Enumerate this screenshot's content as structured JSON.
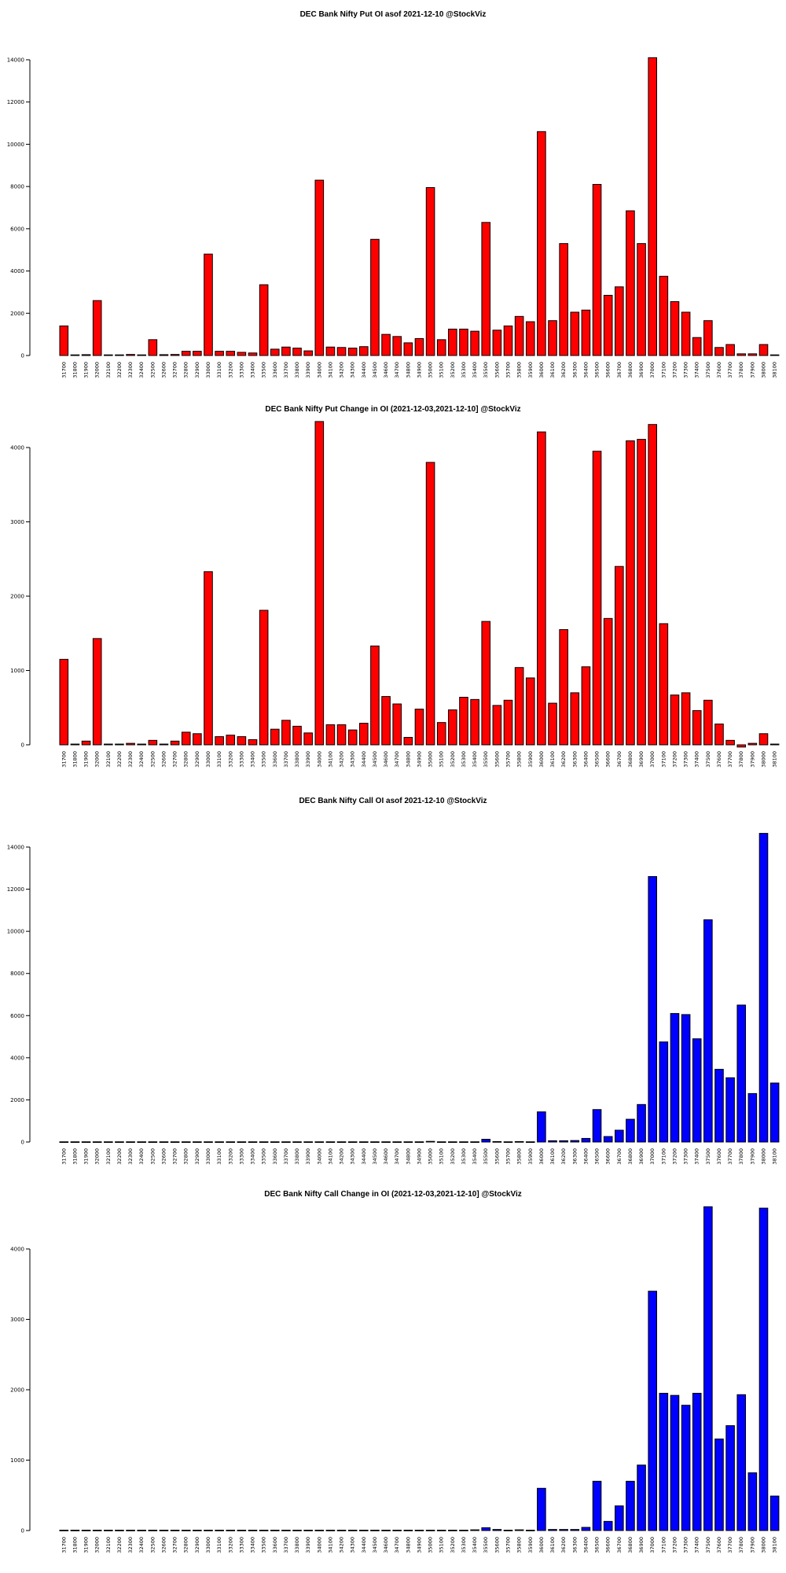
{
  "chart_data": [
    {
      "type": "bar",
      "title": "DEC Bank Nifty Put OI asof 2021-12-10 @StockViz",
      "color": "#ff0000",
      "yticks": [
        0,
        2000,
        4000,
        6000,
        8000,
        10000,
        12000,
        14000
      ],
      "ylim": [
        0,
        14000
      ],
      "categories": [
        "31700",
        "31800",
        "31900",
        "32000",
        "32100",
        "32200",
        "32300",
        "32400",
        "32500",
        "32600",
        "32700",
        "32800",
        "32900",
        "33000",
        "33100",
        "33200",
        "33300",
        "33400",
        "33500",
        "33600",
        "33700",
        "33800",
        "33900",
        "34000",
        "34100",
        "34200",
        "34300",
        "34400",
        "34500",
        "34600",
        "34700",
        "34800",
        "34900",
        "35000",
        "35100",
        "35200",
        "35300",
        "35400",
        "35500",
        "35600",
        "35700",
        "35800",
        "35900",
        "36000",
        "36100",
        "36200",
        "36300",
        "36400",
        "36500",
        "36600",
        "36700",
        "36800",
        "36900",
        "37000",
        "37100",
        "37200",
        "37300",
        "37400",
        "37500",
        "37600",
        "37700",
        "37800",
        "37900",
        "38000",
        "38100"
      ],
      "values": [
        1400,
        30,
        40,
        2600,
        30,
        30,
        50,
        30,
        750,
        40,
        50,
        200,
        200,
        4800,
        200,
        200,
        150,
        120,
        3350,
        300,
        400,
        350,
        220,
        8300,
        400,
        380,
        350,
        420,
        5500,
        1000,
        900,
        600,
        800,
        7950,
        750,
        1250,
        1250,
        1150,
        6300,
        1200,
        1400,
        1850,
        1600,
        10600,
        1650,
        5300,
        2050,
        2150,
        8100,
        2850,
        3250,
        6850,
        5300,
        14100,
        3750,
        2550,
        2050,
        850,
        1650,
        380,
        520,
        80,
        80,
        520,
        30
      ]
    },
    {
      "type": "bar",
      "title": "DEC Bank Nifty Put Change in OI (2021-12-03,2021-12-10] @StockViz",
      "color": "#ff0000",
      "yticks": [
        0,
        1000,
        2000,
        3000,
        4000
      ],
      "ylim": [
        0,
        4300
      ],
      "categories": [
        "31700",
        "31800",
        "31900",
        "32000",
        "32100",
        "32200",
        "32300",
        "32400",
        "32500",
        "32600",
        "32700",
        "32800",
        "32900",
        "33000",
        "33100",
        "33200",
        "33300",
        "33400",
        "33500",
        "33600",
        "33700",
        "33800",
        "33900",
        "34000",
        "34100",
        "34200",
        "34300",
        "34400",
        "34500",
        "34600",
        "34700",
        "34800",
        "34900",
        "35000",
        "35100",
        "35200",
        "35300",
        "35400",
        "35500",
        "35600",
        "35700",
        "35800",
        "35900",
        "36000",
        "36100",
        "36200",
        "36300",
        "36400",
        "36500",
        "36600",
        "36700",
        "36800",
        "36900",
        "37000",
        "37100",
        "37200",
        "37300",
        "37400",
        "37500",
        "37600",
        "37700",
        "37800",
        "37900",
        "38000",
        "38100"
      ],
      "values": [
        1150,
        10,
        50,
        1430,
        10,
        10,
        20,
        10,
        60,
        10,
        50,
        170,
        150,
        2330,
        110,
        130,
        110,
        70,
        1810,
        210,
        330,
        250,
        160,
        4350,
        270,
        270,
        200,
        290,
        1330,
        650,
        550,
        100,
        480,
        3800,
        300,
        470,
        640,
        610,
        1660,
        530,
        600,
        1040,
        900,
        4210,
        560,
        1550,
        700,
        1050,
        3950,
        1700,
        2400,
        4090,
        4110,
        4310,
        1630,
        670,
        700,
        460,
        600,
        280,
        60,
        -30,
        20,
        150,
        10
      ]
    },
    {
      "type": "bar",
      "title": "DEC Bank Nifty Call OI asof 2021-12-10 @StockViz",
      "color": "#0000ff",
      "yticks": [
        0,
        2000,
        4000,
        6000,
        8000,
        10000,
        12000,
        14000
      ],
      "ylim": [
        0,
        14000
      ],
      "categories": [
        "31700",
        "31800",
        "31900",
        "32000",
        "32100",
        "32200",
        "32300",
        "32400",
        "32500",
        "32600",
        "32700",
        "32800",
        "32900",
        "33000",
        "33100",
        "33200",
        "33300",
        "33400",
        "33500",
        "33600",
        "33700",
        "33800",
        "33900",
        "34000",
        "34100",
        "34200",
        "34300",
        "34400",
        "34500",
        "34600",
        "34700",
        "34800",
        "34900",
        "35000",
        "35100",
        "35200",
        "35300",
        "35400",
        "35500",
        "35600",
        "35700",
        "35800",
        "35900",
        "36000",
        "36100",
        "36200",
        "36300",
        "36400",
        "36500",
        "36600",
        "36700",
        "36800",
        "36900",
        "37000",
        "37100",
        "37200",
        "37300",
        "37400",
        "37500",
        "37600",
        "37700",
        "37800",
        "37900",
        "38000",
        "38100"
      ],
      "values": [
        10,
        10,
        10,
        10,
        10,
        10,
        10,
        10,
        10,
        10,
        10,
        10,
        10,
        10,
        10,
        10,
        10,
        10,
        10,
        10,
        10,
        10,
        10,
        10,
        10,
        10,
        10,
        10,
        10,
        10,
        10,
        10,
        10,
        30,
        10,
        10,
        10,
        10,
        130,
        20,
        10,
        20,
        10,
        1430,
        60,
        60,
        70,
        170,
        1540,
        260,
        560,
        1080,
        1780,
        12600,
        4750,
        6100,
        6050,
        4900,
        10550,
        3450,
        3050,
        6500,
        2300,
        14650,
        2800
      ]
    },
    {
      "type": "bar",
      "title": "DEC Bank Nifty Call Change in OI (2021-12-03,2021-12-10] @StockViz",
      "color": "#0000ff",
      "yticks": [
        0,
        1000,
        2000,
        3000,
        4000
      ],
      "ylim": [
        0,
        4300
      ],
      "categories": [
        "31700",
        "31800",
        "31900",
        "32000",
        "32100",
        "32200",
        "32300",
        "32400",
        "32500",
        "32600",
        "32700",
        "32800",
        "32900",
        "33000",
        "33100",
        "33200",
        "33300",
        "33400",
        "33500",
        "33600",
        "33700",
        "33800",
        "33900",
        "34000",
        "34100",
        "34200",
        "34300",
        "34400",
        "34500",
        "34600",
        "34700",
        "34800",
        "34900",
        "35000",
        "35100",
        "35200",
        "35300",
        "35400",
        "35500",
        "35600",
        "35700",
        "35800",
        "35900",
        "36000",
        "36100",
        "36200",
        "36300",
        "36400",
        "36500",
        "36600",
        "36700",
        "36800",
        "36900",
        "37000",
        "37100",
        "37200",
        "37300",
        "37400",
        "37500",
        "37600",
        "37700",
        "37800",
        "37900",
        "38000",
        "38100"
      ],
      "values": [
        5,
        5,
        5,
        5,
        5,
        5,
        5,
        5,
        5,
        5,
        5,
        5,
        5,
        5,
        5,
        5,
        5,
        5,
        5,
        5,
        5,
        5,
        5,
        5,
        5,
        5,
        5,
        5,
        5,
        5,
        5,
        5,
        5,
        5,
        5,
        5,
        5,
        10,
        40,
        15,
        5,
        10,
        5,
        600,
        15,
        15,
        15,
        45,
        700,
        130,
        350,
        700,
        930,
        3400,
        1950,
        1920,
        1780,
        1950,
        4600,
        1300,
        1490,
        1930,
        820,
        4580,
        490
      ]
    }
  ]
}
